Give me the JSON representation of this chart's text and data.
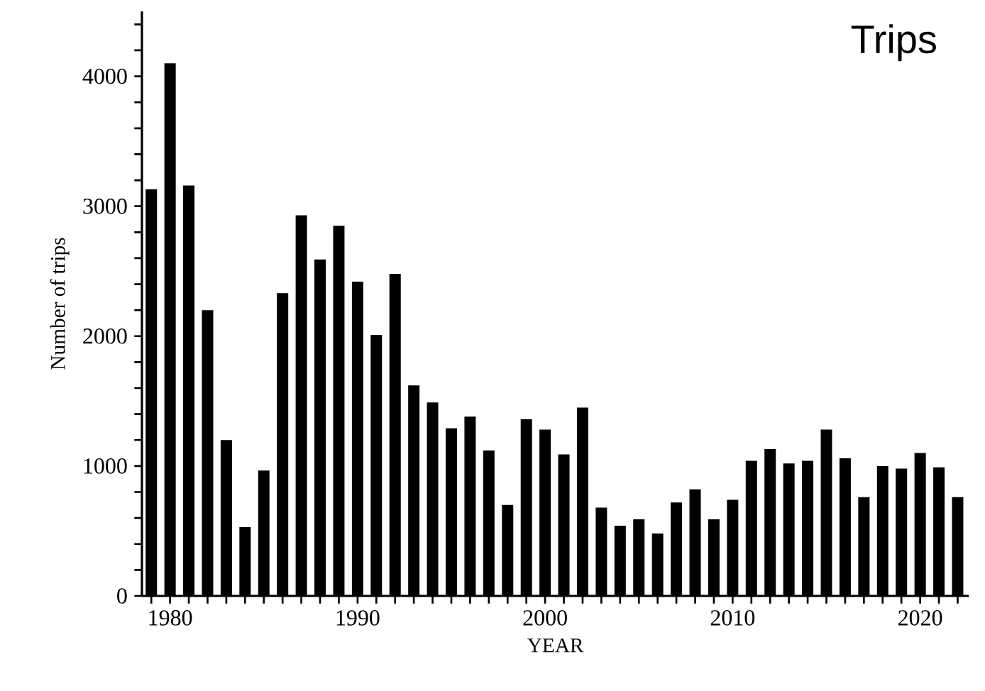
{
  "chart_data": {
    "type": "bar",
    "title": "Trips",
    "xlabel": "YEAR",
    "ylabel": "Number of trips",
    "x": [
      1979,
      1980,
      1981,
      1982,
      1983,
      1984,
      1985,
      1986,
      1987,
      1988,
      1989,
      1990,
      1991,
      1992,
      1993,
      1994,
      1995,
      1996,
      1997,
      1998,
      1999,
      2000,
      2001,
      2002,
      2003,
      2004,
      2005,
      2006,
      2007,
      2008,
      2009,
      2010,
      2011,
      2012,
      2013,
      2014,
      2015,
      2016,
      2017,
      2018,
      2019,
      2020,
      2021,
      2022
    ],
    "values": [
      3130,
      4100,
      3160,
      2200,
      1200,
      530,
      965,
      2330,
      2930,
      2590,
      2850,
      2420,
      2010,
      2480,
      1620,
      1490,
      1290,
      1380,
      1120,
      700,
      1360,
      1280,
      1090,
      1450,
      680,
      540,
      590,
      480,
      720,
      820,
      590,
      740,
      1040,
      1130,
      1020,
      1040,
      1280,
      1060,
      760,
      1000,
      980,
      1100,
      990,
      760
    ],
    "color": "#000000",
    "grid": false,
    "xlim": [
      1978.5,
      2022.6
    ],
    "ylim": [
      0,
      4500
    ],
    "xticks": [
      {
        "value": 1979,
        "label": null
      },
      1980,
      {
        "value": 1981,
        "label": null
      },
      {
        "value": 1982,
        "label": null
      },
      {
        "value": 1983,
        "label": null
      },
      {
        "value": 1984,
        "label": null
      },
      {
        "value": 1985,
        "label": null
      },
      {
        "value": 1986,
        "label": null
      },
      {
        "value": 1987,
        "label": null
      },
      {
        "value": 1988,
        "label": null
      },
      {
        "value": 1989,
        "label": null
      },
      1990,
      {
        "value": 1991,
        "label": null
      },
      {
        "value": 1992,
        "label": null
      },
      {
        "value": 1993,
        "label": null
      },
      {
        "value": 1994,
        "label": null
      },
      {
        "value": 1995,
        "label": null
      },
      {
        "value": 1996,
        "label": null
      },
      {
        "value": 1997,
        "label": null
      },
      {
        "value": 1998,
        "label": null
      },
      {
        "value": 1999,
        "label": null
      },
      2000,
      {
        "value": 2001,
        "label": null
      },
      {
        "value": 2002,
        "label": null
      },
      {
        "value": 2003,
        "label": null
      },
      {
        "value": 2004,
        "label": null
      },
      {
        "value": 2005,
        "label": null
      },
      {
        "value": 2006,
        "label": null
      },
      {
        "value": 2007,
        "label": null
      },
      {
        "value": 2008,
        "label": null
      },
      {
        "value": 2009,
        "label": null
      },
      2010,
      {
        "value": 2011,
        "label": null
      },
      {
        "value": 2012,
        "label": null
      },
      {
        "value": 2013,
        "label": null
      },
      {
        "value": 2014,
        "label": null
      },
      {
        "value": 2015,
        "label": null
      },
      {
        "value": 2016,
        "label": null
      },
      {
        "value": 2017,
        "label": null
      },
      {
        "value": 2018,
        "label": null
      },
      {
        "value": 2019,
        "label": null
      },
      2020,
      {
        "value": 2021,
        "label": null
      },
      {
        "value": 2022,
        "label": null
      }
    ],
    "yticks": [
      0,
      {
        "value": 200,
        "label": null
      },
      {
        "value": 400,
        "label": null
      },
      {
        "value": 600,
        "label": null
      },
      {
        "value": 800,
        "label": null
      },
      1000,
      {
        "value": 1200,
        "label": null
      },
      {
        "value": 1400,
        "label": null
      },
      {
        "value": 1600,
        "label": null
      },
      {
        "value": 1800,
        "label": null
      },
      2000,
      {
        "value": 2200,
        "label": null
      },
      {
        "value": 2400,
        "label": null
      },
      {
        "value": 2600,
        "label": null
      },
      {
        "value": 2800,
        "label": null
      },
      3000,
      {
        "value": 3200,
        "label": null
      },
      {
        "value": 3400,
        "label": null
      },
      {
        "value": 3600,
        "label": null
      },
      {
        "value": 3800,
        "label": null
      },
      4000,
      {
        "value": 4200,
        "label": null
      },
      {
        "value": 4400,
        "label": null
      }
    ]
  }
}
